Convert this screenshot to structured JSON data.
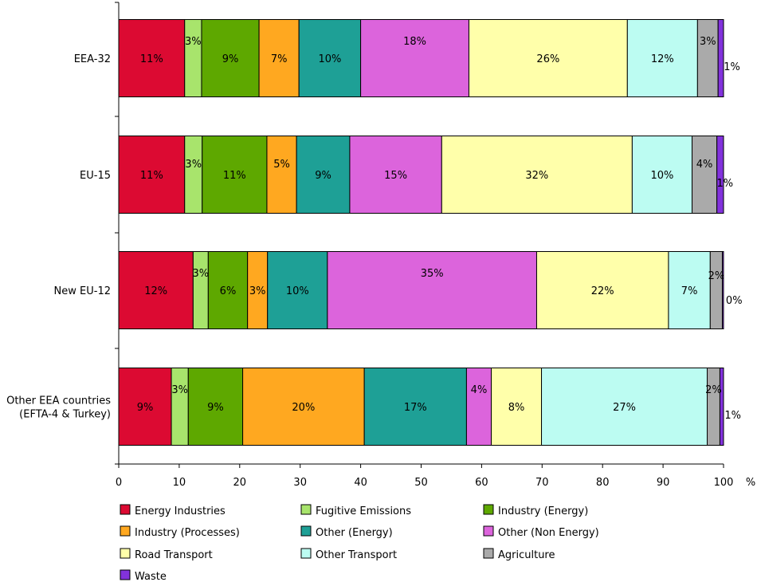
{
  "chart_data": {
    "type": "bar",
    "orientation": "horizontal",
    "stacked": true,
    "title": "",
    "xlabel": "%",
    "ylabel": "",
    "xlim": [
      0,
      100
    ],
    "xticks": [
      "0",
      "10",
      "20",
      "30",
      "40",
      "50",
      "60",
      "70",
      "80",
      "90",
      "100"
    ],
    "x_unit_label": "%",
    "legend_position": "bottom",
    "categories": [
      [
        "EEA-32"
      ],
      [
        "EU-15"
      ],
      [
        "New EU-12"
      ],
      [
        "Other EEA countries",
        "(EFTA-4 & Turkey)"
      ]
    ],
    "series": [
      {
        "name": "Energy Industries",
        "color": "#dc0a32",
        "values": [
          10.9,
          10.9,
          12.3,
          8.7
        ],
        "labels": [
          "11%",
          "11%",
          "12%",
          "9%"
        ]
      },
      {
        "name": "Fugitive Emissions",
        "color": "#a8e46c",
        "values": [
          2.8,
          2.9,
          2.5,
          2.8
        ],
        "labels": [
          "3%",
          "3%",
          "3%",
          "3%"
        ]
      },
      {
        "name": "Industry (Energy)",
        "color": "#5ea800",
        "values": [
          9.5,
          10.7,
          6.5,
          9.0
        ],
        "labels": [
          "9%",
          "11%",
          "6%",
          "9%"
        ]
      },
      {
        "name": "Industry (Processes)",
        "color": "#ffa820",
        "values": [
          6.6,
          4.9,
          3.3,
          20.1
        ],
        "labels": [
          "7%",
          "5%",
          "3%",
          "20%"
        ]
      },
      {
        "name": "Other (Energy)",
        "color": "#1ea096",
        "values": [
          10.2,
          8.8,
          9.9,
          16.9
        ],
        "labels": [
          "10%",
          "9%",
          "10%",
          "17%"
        ]
      },
      {
        "name": "Other (Non Energy)",
        "color": "#dc64dc",
        "values": [
          17.9,
          15.2,
          34.6,
          4.1
        ],
        "labels": [
          "18%",
          "15%",
          "35%",
          "4%"
        ]
      },
      {
        "name": "Road Transport",
        "color": "#ffffaa",
        "values": [
          26.2,
          31.5,
          21.8,
          8.3
        ],
        "labels": [
          "26%",
          "32%",
          "22%",
          "8%"
        ]
      },
      {
        "name": "Other Transport",
        "color": "#bcfcf2",
        "values": [
          11.6,
          9.9,
          6.9,
          27.4
        ],
        "labels": [
          "12%",
          "10%",
          "7%",
          "27%"
        ]
      },
      {
        "name": "Agriculture",
        "color": "#aaaaaa",
        "values": [
          3.4,
          4.1,
          2.0,
          2.1
        ],
        "labels": [
          "3%",
          "4%",
          "2%",
          "2%"
        ]
      },
      {
        "name": "Waste",
        "color": "#8232dc",
        "values": [
          0.9,
          1.1,
          0.2,
          0.6
        ],
        "labels": [
          "1%",
          "1%",
          "0%",
          "1%"
        ]
      }
    ]
  }
}
